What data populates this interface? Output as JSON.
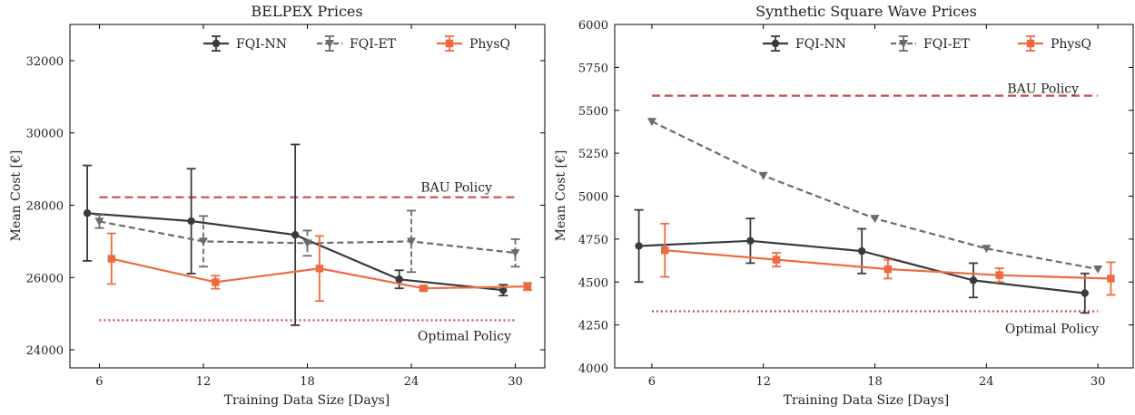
{
  "colors": {
    "fqi_nn": "#3a3a3a",
    "fqi_et": "#6b6b6b",
    "physq": "#ee6a40",
    "bau": "#c44e4a",
    "optimal": "#c44e4a",
    "optimal_label_right": "#777777"
  },
  "chart_data": [
    {
      "type": "line",
      "title": "BELPEX Prices",
      "xlabel": "Training Data Size [Days]",
      "ylabel": "Mean Cost [€]",
      "xlim": [
        4.3,
        31.7
      ],
      "ylim": [
        23500,
        33000
      ],
      "xticks": [
        6,
        12,
        18,
        24,
        30
      ],
      "yticks": [
        24000,
        26000,
        28000,
        30000,
        32000
      ],
      "grid": false,
      "legend_placement": "top",
      "series": [
        {
          "name": "FQI-NN",
          "marker": "circle",
          "dash": "solid",
          "x": [
            5.3,
            11.3,
            17.3,
            23.3,
            29.3
          ],
          "y": [
            27780,
            27560,
            27180,
            25950,
            25650
          ],
          "err": [
            1320,
            1450,
            2500,
            250,
            150
          ]
        },
        {
          "name": "FQI-ET",
          "marker": "triangle-down",
          "dash": "dashed",
          "x": [
            6,
            12,
            18,
            24,
            30
          ],
          "y": [
            27550,
            27000,
            26950,
            27000,
            26680
          ],
          "err": [
            180,
            700,
            350,
            850,
            380
          ]
        },
        {
          "name": "PhysQ",
          "marker": "square",
          "dash": "solid",
          "x": [
            6.7,
            12.7,
            18.7,
            24.7,
            30.7
          ],
          "y": [
            26520,
            25870,
            26250,
            25700,
            25750
          ],
          "err": [
            700,
            180,
            900,
            50,
            100
          ]
        }
      ],
      "hlines": [
        {
          "label": "BAU Policy",
          "y": 28220,
          "style": "dashed",
          "xrange": [
            6,
            30
          ]
        },
        {
          "label": "Optimal Policy",
          "y": 24820,
          "style": "dotted",
          "xrange": [
            6,
            30
          ]
        }
      ]
    },
    {
      "type": "line",
      "title": "Synthetic Square Wave Prices",
      "xlabel": "Training Data Size [Days]",
      "ylabel": "Mean Cost [€]",
      "xlim": [
        4.0,
        31.9
      ],
      "ylim": [
        4000,
        6000
      ],
      "xticks": [
        6,
        12,
        18,
        24,
        30
      ],
      "yticks": [
        4000,
        4250,
        4500,
        4750,
        5000,
        5250,
        5500,
        5750,
        6000
      ],
      "grid": false,
      "legend_placement": "top",
      "series": [
        {
          "name": "FQI-NN",
          "marker": "circle",
          "dash": "solid",
          "x": [
            5.3,
            11.3,
            17.3,
            23.3,
            29.3
          ],
          "y": [
            4710,
            4740,
            4680,
            4510,
            4435
          ],
          "err": [
            210,
            130,
            130,
            100,
            115
          ]
        },
        {
          "name": "FQI-ET",
          "marker": "triangle-down",
          "dash": "dashed",
          "x": [
            6,
            12,
            18,
            24,
            30
          ],
          "y": [
            5435,
            5120,
            4870,
            4695,
            4575
          ],
          "err": [
            0,
            0,
            0,
            0,
            0
          ]
        },
        {
          "name": "PhysQ",
          "marker": "square",
          "dash": "solid",
          "x": [
            6.7,
            12.7,
            18.7,
            24.7,
            30.7
          ],
          "y": [
            4685,
            4630,
            4575,
            4540,
            4520
          ],
          "err": [
            155,
            40,
            55,
            40,
            95
          ]
        }
      ],
      "hlines": [
        {
          "label": "BAU Policy",
          "y": 5585,
          "style": "dashed",
          "xrange": [
            6,
            30
          ]
        },
        {
          "label": "Optimal Policy",
          "y": 4330,
          "style": "dotted",
          "xrange": [
            6,
            30
          ]
        }
      ]
    }
  ]
}
